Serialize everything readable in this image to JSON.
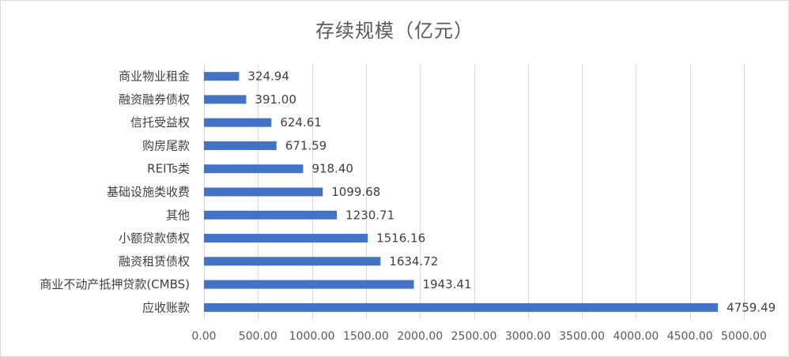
{
  "chart_data": {
    "type": "bar",
    "orientation": "horizontal",
    "title": "存续规模（亿元）",
    "xlabel": "",
    "ylabel": "",
    "xlim": [
      0,
      5000
    ],
    "x_ticks": [
      "0.00",
      "500.00",
      "1000.00",
      "1500.00",
      "2000.00",
      "2500.00",
      "3000.00",
      "3500.00",
      "4000.00",
      "4500.00",
      "5000.00"
    ],
    "grid": "vertical",
    "legend": "none",
    "bar_color": "#4472c4",
    "categories": [
      "商业物业租金",
      "融资融券债权",
      "信托受益权",
      "购房尾款",
      "REITs类",
      "基础设施类收费",
      "其他",
      "小额贷款债权",
      "融资租赁债权",
      "商业不动产抵押贷款(CMBS)",
      "应收账款"
    ],
    "values": [
      324.94,
      391.0,
      624.61,
      671.59,
      918.4,
      1099.68,
      1230.71,
      1516.16,
      1634.72,
      1943.41,
      4759.49
    ],
    "value_labels": [
      "324.94",
      "391.00",
      "624.61",
      "671.59",
      "918.40",
      "1099.68",
      "1230.71",
      "1516.16",
      "1634.72",
      "1943.41",
      "4759.49"
    ]
  }
}
